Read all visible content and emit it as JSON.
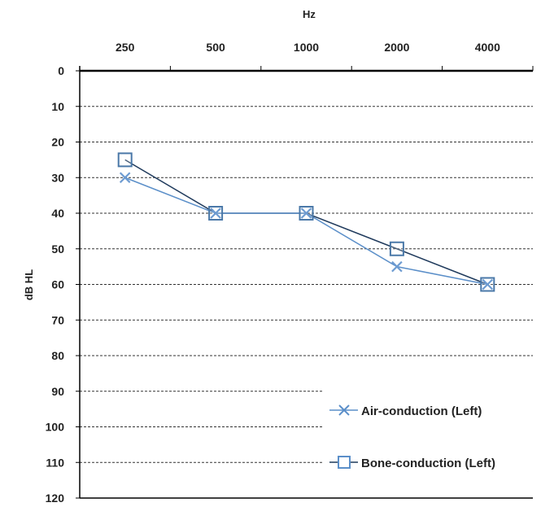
{
  "chart_data": {
    "type": "line",
    "xlabel": "Hz",
    "ylabel": "dB HL",
    "categories": [
      "250",
      "500",
      "1000",
      "2000",
      "4000"
    ],
    "yticks": [
      0,
      10,
      20,
      30,
      40,
      50,
      60,
      70,
      80,
      90,
      100,
      110,
      120
    ],
    "ylim": [
      0,
      120
    ],
    "y_inverted": true,
    "x_axis_position": "top",
    "grid": true,
    "legend_position": "bottom-right",
    "series": [
      {
        "name": "Air-conduction (Left)",
        "marker": "x",
        "color": "#5b8fc9",
        "values": [
          30,
          40,
          40,
          55,
          60
        ]
      },
      {
        "name": "Bone-conduction (Left)",
        "marker": "square",
        "color": "#1f3a5c",
        "values": [
          25,
          40,
          40,
          50,
          60
        ]
      }
    ]
  }
}
